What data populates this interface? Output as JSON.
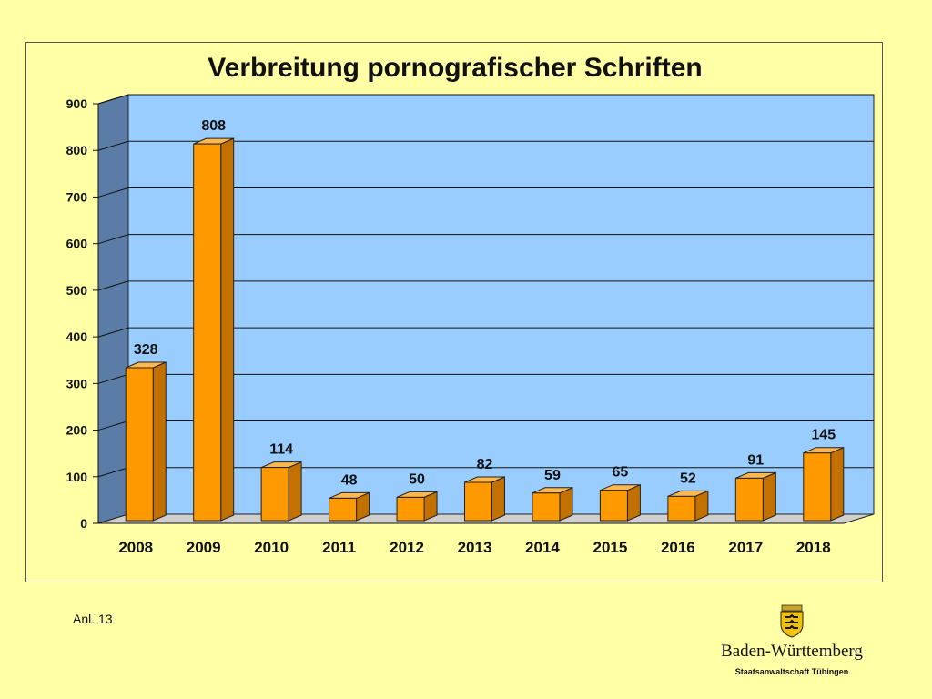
{
  "chart_data": {
    "type": "bar",
    "title": "Verbreitung pornografischer Schriften",
    "categories": [
      "2008",
      "2009",
      "2010",
      "2011",
      "2012",
      "2013",
      "2014",
      "2015",
      "2016",
      "2017",
      "2018"
    ],
    "values": [
      328,
      808,
      114,
      48,
      50,
      82,
      59,
      65,
      52,
      91,
      145
    ],
    "ylim": [
      0,
      900
    ],
    "yticks": [
      0,
      100,
      200,
      300,
      400,
      500,
      600,
      700,
      800,
      900
    ],
    "grid": true,
    "colors": {
      "bar": "#ff9900",
      "bar_side": "#c27100",
      "plot_back": "#99ccff",
      "plot_wall": "#5a7ca6"
    }
  },
  "footer": {
    "note": "Anl. 13"
  },
  "brand": {
    "name": "Baden-Württemberg",
    "office": "Staatsanwaltschaft Tübingen"
  }
}
